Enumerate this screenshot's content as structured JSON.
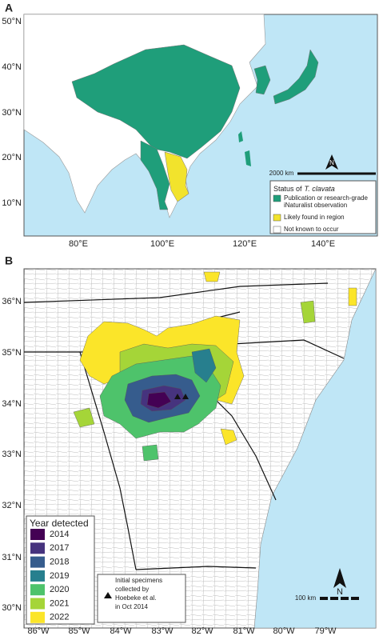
{
  "panel_a": {
    "label": "A",
    "lat_labels": [
      "50°N",
      "40°N",
      "30°N",
      "20°N",
      "10°N"
    ],
    "lon_labels": [
      "80°E",
      "100°E",
      "120°E",
      "140°E"
    ],
    "scale": "2000 km",
    "north": "N",
    "legend": {
      "title_prefix": "Status of",
      "title_species": "T. clavata",
      "items": [
        {
          "lines": [
            "Publication or research-grade",
            "iNaturalist observation"
          ],
          "color": "#1f9e7a"
        },
        {
          "lines": [
            "Likely found in region"
          ],
          "color": "#f2e32c"
        },
        {
          "lines": [
            "Not known to occur"
          ],
          "color": "#ffffff"
        }
      ]
    }
  },
  "panel_b": {
    "label": "B",
    "lat_labels": [
      "36°N",
      "35°N",
      "34°N",
      "33°N",
      "32°N",
      "31°N",
      "30°N"
    ],
    "lon_labels": [
      "86°W",
      "85°W",
      "84°W",
      "83°W",
      "82°W",
      "81°W",
      "80°W",
      "79°W"
    ],
    "scale": "100 km",
    "north": "N",
    "legend": {
      "title": "Year detected",
      "items": [
        {
          "label": "2014",
          "color": "#440154"
        },
        {
          "label": "2017",
          "color": "#46337e"
        },
        {
          "label": "2018",
          "color": "#365c8d"
        },
        {
          "label": "2019",
          "color": "#277f8e"
        },
        {
          "label": "2020",
          "color": "#4ec36b"
        },
        {
          "label": "2021",
          "color": "#a5d538"
        },
        {
          "label": "2022",
          "color": "#fbe529"
        }
      ]
    },
    "annotation": [
      "Initial specimens",
      "collected by",
      "Hoebeke et al.",
      "in Oct 2014"
    ]
  }
}
